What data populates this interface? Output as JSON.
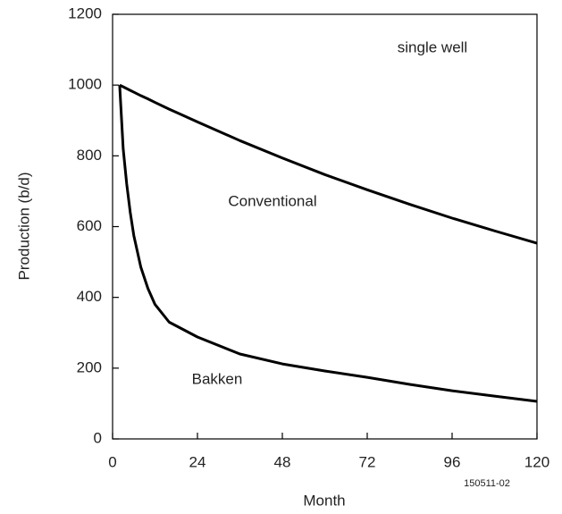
{
  "chart_data": {
    "type": "line",
    "y_label": "Production (b/d)",
    "x_label": "Month",
    "annotations": [
      "single well",
      "Conventional",
      "Bakken",
      "150511-02"
    ],
    "x": [
      2,
      3,
      4,
      5,
      6,
      8,
      10,
      12,
      16,
      24,
      36,
      48,
      60,
      72,
      84,
      96,
      108,
      120
    ],
    "series": [
      {
        "name": "Conventional",
        "color": "#000000",
        "values": [
          1000,
          995,
          990,
          985,
          980,
          970,
          961,
          951,
          932,
          896,
          843,
          794,
          747,
          704,
          663,
          624,
          588,
          553
        ]
      },
      {
        "name": "Bakken",
        "color": "#000000",
        "values": [
          1000,
          820,
          720,
          640,
          575,
          485,
          425,
          380,
          330,
          288,
          240,
          212,
          192,
          174,
          154,
          136,
          121,
          106
        ]
      }
    ],
    "xlim": [
      0,
      120
    ],
    "xticks": [
      0,
      24,
      48,
      72,
      96,
      120
    ],
    "ylim": [
      0,
      1200
    ],
    "yticks": [
      0,
      200,
      400,
      600,
      800,
      1000,
      1200
    ]
  }
}
